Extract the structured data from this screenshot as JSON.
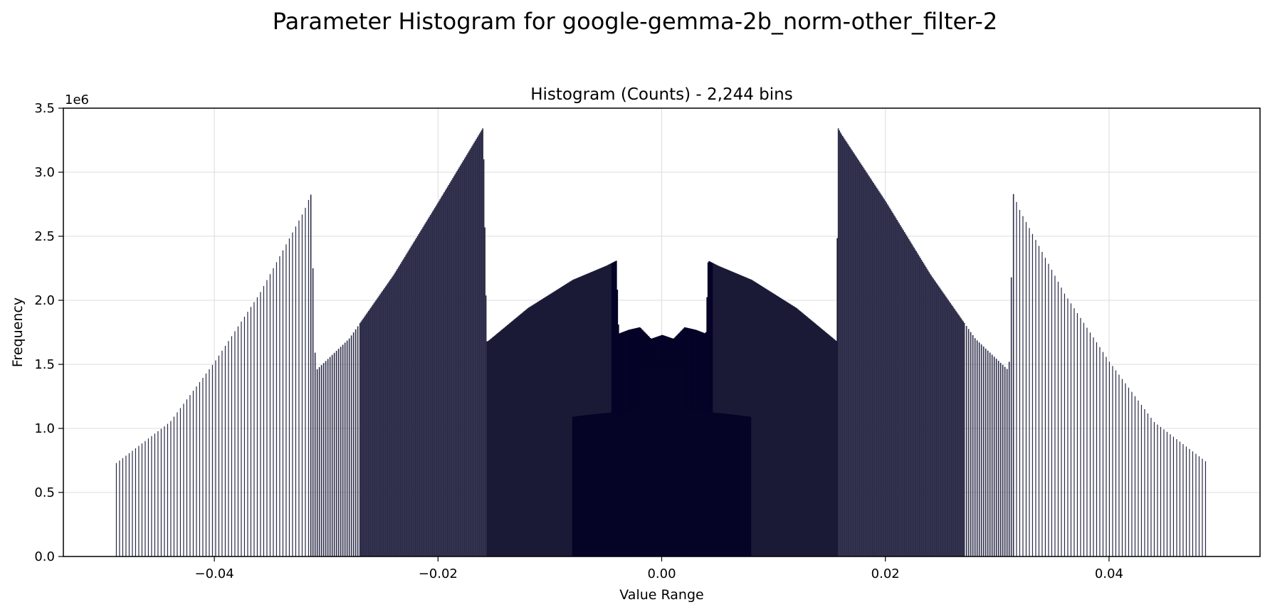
{
  "figure": {
    "suptitle": "Parameter Histogram for google-gemma-2b_norm-other_filter-2"
  },
  "chart_data": {
    "type": "bar",
    "title": "Histogram (Counts) - 2,244 bins",
    "xlabel": "Value Range",
    "ylabel": "Frequency",
    "y_offset_label": "1e6",
    "xlim": [
      -0.0535,
      0.0535
    ],
    "ylim": [
      0,
      3.5
    ],
    "x_ticks": [
      -0.04,
      -0.02,
      0.0,
      0.02,
      0.04
    ],
    "x_tick_labels": [
      "−0.04",
      "−0.02",
      "0.00",
      "0.02",
      "0.04"
    ],
    "y_ticks": [
      0.0,
      0.5,
      1.0,
      1.5,
      2.0,
      2.5,
      3.0,
      3.5
    ],
    "y_tick_labels": [
      "0.0",
      "0.5",
      "1.0",
      "1.5",
      "2.0",
      "2.5",
      "3.0",
      "3.5"
    ],
    "grid": true,
    "bar_color": "#2b2b48",
    "dense_color": "#050326",
    "series": [
      {
        "values_scale": "1e6",
        "x": [
          -0.0488,
          -0.044,
          -0.04,
          -0.036,
          -0.032,
          -0.0314,
          -0.031,
          -0.028,
          -0.024,
          -0.02,
          -0.016,
          -0.0157,
          -0.0156,
          -0.012,
          -0.008,
          -0.005,
          -0.0041,
          -0.0039,
          -0.003,
          -0.002,
          -0.001,
          0.0,
          0.001,
          0.002,
          0.003,
          0.0039,
          0.0041,
          0.005,
          0.008,
          0.012,
          0.0156,
          0.0157,
          0.016,
          0.02,
          0.024,
          0.028,
          0.031,
          0.0314,
          0.032,
          0.036,
          0.04,
          0.044,
          0.0488
        ],
        "values": [
          0.73,
          1.05,
          1.52,
          2.05,
          2.7,
          2.83,
          1.45,
          1.7,
          2.2,
          2.77,
          3.35,
          1.68,
          1.68,
          1.94,
          2.16,
          2.27,
          2.31,
          1.74,
          1.77,
          1.79,
          1.7,
          1.73,
          1.7,
          1.79,
          1.77,
          1.74,
          2.31,
          2.27,
          2.16,
          1.94,
          1.68,
          3.35,
          3.3,
          2.77,
          2.2,
          1.7,
          1.45,
          2.83,
          2.7,
          2.05,
          1.52,
          1.05,
          0.73
        ]
      }
    ]
  }
}
